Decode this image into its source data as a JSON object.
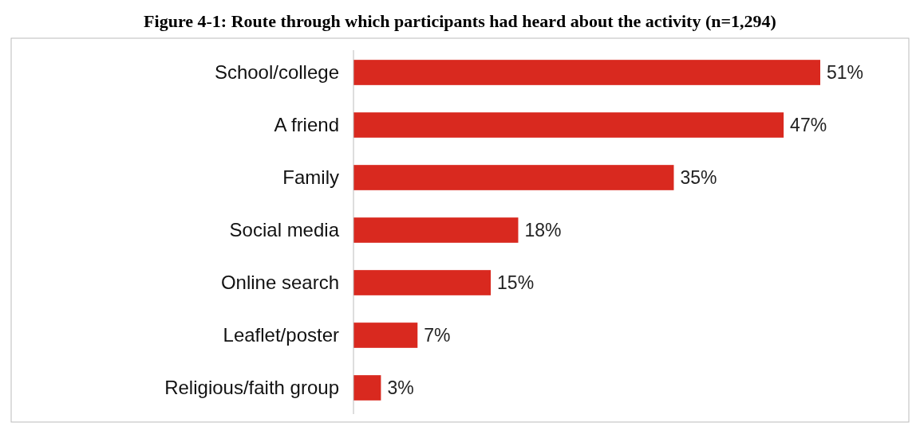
{
  "chart_data": {
    "type": "bar",
    "orientation": "horizontal",
    "title": "Figure 4-1: Route through which participants had heard about the activity (n=1,294)",
    "categories": [
      "School/college",
      "A friend",
      "Family",
      "Social media",
      "Online search",
      "Leaflet/poster",
      "Religious/faith group"
    ],
    "values": [
      51,
      47,
      35,
      18,
      15,
      7,
      3
    ],
    "color": "#d9291f",
    "value_labels": [
      "51%",
      "47%",
      "35%",
      "18%",
      "15%",
      "7%",
      "3%"
    ]
  }
}
